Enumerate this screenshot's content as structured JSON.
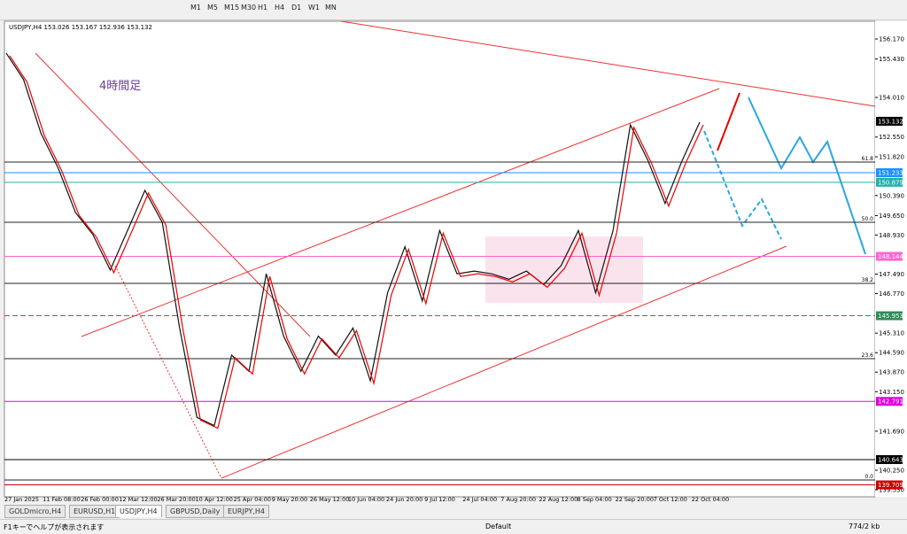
{
  "toolbar": {
    "timeframes": [
      "M1",
      "M5",
      "M15",
      "M30",
      "H1",
      "H4",
      "D1",
      "W1",
      "MN"
    ]
  },
  "chart": {
    "symbol_info": "USDJPY,H4 153.026 153.167 152.936 153.132",
    "annotation": "4時間足",
    "ylim": [
      139.53,
      156.17
    ],
    "price_labels": [
      {
        "value": 156.17,
        "label": "156.170"
      },
      {
        "value": 155.43,
        "label": "155.430"
      },
      {
        "value": 154.01,
        "label": "154.010"
      },
      {
        "value": 152.55,
        "label": "152.550"
      },
      {
        "value": 151.82,
        "label": "151.820"
      },
      {
        "value": 150.39,
        "label": "150.390"
      },
      {
        "value": 149.65,
        "label": "149.650"
      },
      {
        "value": 148.93,
        "label": "148.930"
      },
      {
        "value": 147.49,
        "label": "147.490"
      },
      {
        "value": 146.77,
        "label": "146.770"
      },
      {
        "value": 145.31,
        "label": "145.310"
      },
      {
        "value": 144.59,
        "label": "144.590"
      },
      {
        "value": 143.87,
        "label": "143.870"
      },
      {
        "value": 143.15,
        "label": "143.150"
      },
      {
        "value": 141.69,
        "label": "141.690"
      },
      {
        "value": 140.25,
        "label": "140.250"
      },
      {
        "value": 139.53,
        "label": "139.530"
      }
    ],
    "level_labels": [
      {
        "value": 153.132,
        "label": "153.132",
        "color": "#000000"
      },
      {
        "value": 151.233,
        "label": "151.233",
        "color": "#1e90ff"
      },
      {
        "value": 150.879,
        "label": "150.879",
        "color": "#20b2aa"
      },
      {
        "value": 148.144,
        "label": "148.144",
        "color": "#ff66cc"
      },
      {
        "value": 145.953,
        "label": "145.953",
        "color": "#2e8b57"
      },
      {
        "value": 142.791,
        "label": "142.791",
        "color": "#e000e0"
      },
      {
        "value": 140.643,
        "label": "140.643",
        "color": "#000000"
      },
      {
        "value": 139.709,
        "label": "139.709",
        "color": "#cc0000"
      }
    ],
    "fibo_levels": [
      "61.8",
      "50.0",
      "38.2",
      "23.6",
      "0.0"
    ],
    "time_labels": [
      "27 Jan 2025",
      "11 Feb 08:00",
      "26 Feb 00:00",
      "12 Mar 12:00",
      "26 Mar 20:00",
      "10 Apr 12:00",
      "25 Apr 04:00",
      "9 May 20:00",
      "26 May 12:00",
      "10 Jun 04:00",
      "24 Jun 20:00",
      "9 Jul 12:00",
      "24 Jul 04:00",
      "7 Aug 20:00",
      "22 Aug 12:00",
      "8 Sep 04:00",
      "22 Sep 20:00",
      "7 Oct 12:00",
      "22 Oct 04:00"
    ],
    "price_trace": [
      155.65,
      154.67,
      152.7,
      151.4,
      149.76,
      148.95,
      147.64,
      149.1,
      150.58,
      149.4,
      145.5,
      142.2,
      141.9,
      144.5,
      143.9,
      147.5,
      145.2,
      143.9,
      145.2,
      144.5,
      145.5,
      143.55,
      146.8,
      148.5,
      146.5,
      149.1,
      147.5,
      147.6,
      147.5,
      147.3,
      147.6,
      147.1,
      147.8,
      149.1,
      146.8,
      149.1,
      153.0,
      151.7,
      150.1,
      151.7,
      153.1
    ]
  },
  "tabs": [
    "GOLDmicro,H4",
    "EURUSD,H1",
    "USDJPY,H4",
    "GBPUSD,Daily",
    "EURJPY,H4"
  ],
  "status": {
    "help": "F1キーでヘルプが表示されます",
    "profile": "Default",
    "traffic": "774/2 kb"
  }
}
